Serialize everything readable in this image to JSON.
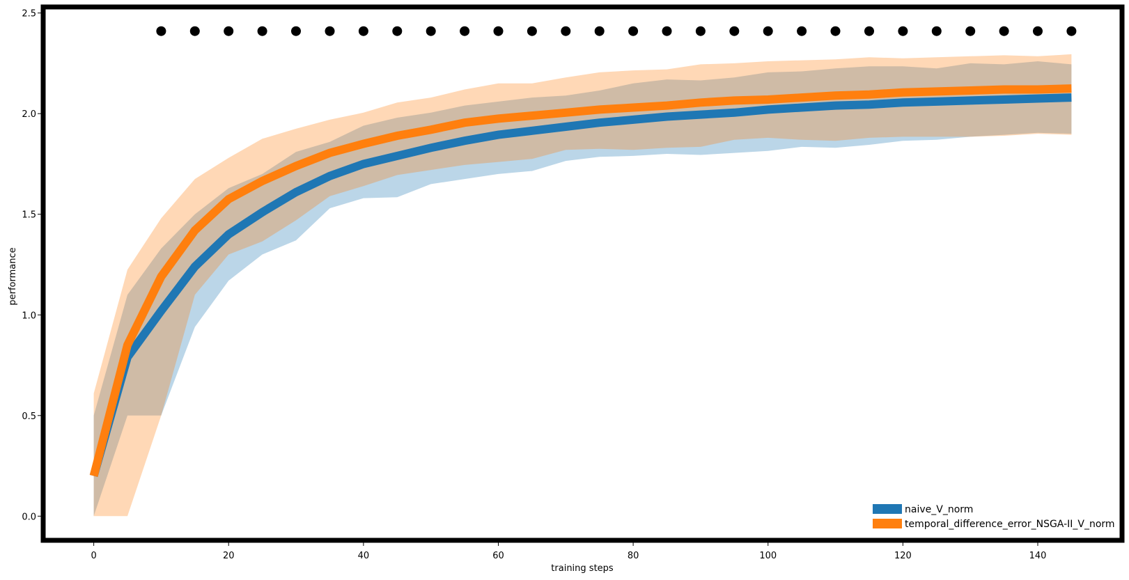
{
  "chart_data": {
    "type": "line",
    "title": "",
    "xlabel": "training steps",
    "ylabel": "performance",
    "xlim": [
      -7.5,
      152.5
    ],
    "ylim": [
      -0.12,
      2.53
    ],
    "xticks": [
      0,
      20,
      40,
      60,
      80,
      100,
      120,
      140
    ],
    "yticks": [
      0.0,
      0.5,
      1.0,
      1.5,
      2.0,
      2.5
    ],
    "xtick_labels": [
      "0",
      "20",
      "40",
      "60",
      "80",
      "100",
      "120",
      "140"
    ],
    "ytick_labels": [
      "0.0",
      "0.5",
      "1.0",
      "1.5",
      "2.0",
      "2.5"
    ],
    "grid": false,
    "legend_position": "bottom-right",
    "x": [
      0,
      5,
      10,
      15,
      20,
      25,
      30,
      35,
      40,
      45,
      50,
      55,
      60,
      65,
      70,
      75,
      80,
      85,
      90,
      95,
      100,
      105,
      110,
      115,
      120,
      125,
      130,
      135,
      140,
      145
    ],
    "series": [
      {
        "name": "naive_V_norm",
        "color": "#1f77b4",
        "band_color": "#1f77b4",
        "values": [
          0.2,
          0.79,
          1.02,
          1.24,
          1.4,
          1.51,
          1.61,
          1.69,
          1.75,
          1.79,
          1.83,
          1.865,
          1.895,
          1.915,
          1.935,
          1.955,
          1.97,
          1.985,
          1.995,
          2.005,
          2.02,
          2.03,
          2.04,
          2.045,
          2.055,
          2.06,
          2.065,
          2.07,
          2.075,
          2.08
        ],
        "lower": [
          0.0,
          0.5,
          0.5,
          0.94,
          1.17,
          1.3,
          1.37,
          1.53,
          1.58,
          1.585,
          1.65,
          1.675,
          1.7,
          1.715,
          1.765,
          1.785,
          1.79,
          1.8,
          1.795,
          1.805,
          1.815,
          1.835,
          1.83,
          1.845,
          1.865,
          1.87,
          1.885,
          1.895,
          1.905,
          1.9
        ],
        "upper": [
          0.5,
          1.1,
          1.33,
          1.5,
          1.63,
          1.7,
          1.81,
          1.86,
          1.94,
          1.98,
          2.005,
          2.04,
          2.06,
          2.08,
          2.09,
          2.115,
          2.15,
          2.17,
          2.165,
          2.18,
          2.205,
          2.21,
          2.225,
          2.235,
          2.235,
          2.225,
          2.25,
          2.245,
          2.26,
          2.245
        ]
      },
      {
        "name": "temporal_difference_error_NSGA-II_V_norm",
        "color": "#ff7f0e",
        "band_color": "#ff7f0e",
        "values": [
          0.2,
          0.85,
          1.19,
          1.42,
          1.575,
          1.665,
          1.74,
          1.805,
          1.85,
          1.89,
          1.92,
          1.955,
          1.975,
          1.99,
          2.005,
          2.02,
          2.03,
          2.04,
          2.055,
          2.065,
          2.07,
          2.08,
          2.09,
          2.095,
          2.105,
          2.11,
          2.115,
          2.12,
          2.12,
          2.125
        ],
        "lower": [
          0.0,
          0.0,
          0.5,
          1.1,
          1.3,
          1.365,
          1.47,
          1.59,
          1.64,
          1.695,
          1.72,
          1.745,
          1.76,
          1.775,
          1.82,
          1.825,
          1.82,
          1.83,
          1.835,
          1.87,
          1.88,
          1.87,
          1.865,
          1.88,
          1.885,
          1.885,
          1.885,
          1.89,
          1.9,
          1.895
        ],
        "upper": [
          0.61,
          1.225,
          1.48,
          1.675,
          1.78,
          1.875,
          1.925,
          1.97,
          2.005,
          2.055,
          2.08,
          2.12,
          2.15,
          2.15,
          2.18,
          2.205,
          2.215,
          2.22,
          2.245,
          2.25,
          2.26,
          2.265,
          2.27,
          2.28,
          2.275,
          2.28,
          2.285,
          2.29,
          2.285,
          2.295
        ]
      }
    ],
    "markers": {
      "color": "#000000",
      "y": 2.41,
      "x": [
        10,
        15,
        20,
        25,
        30,
        35,
        40,
        45,
        50,
        55,
        60,
        65,
        70,
        75,
        80,
        85,
        90,
        95,
        100,
        105,
        110,
        115,
        120,
        125,
        130,
        135,
        140,
        145
      ]
    }
  }
}
